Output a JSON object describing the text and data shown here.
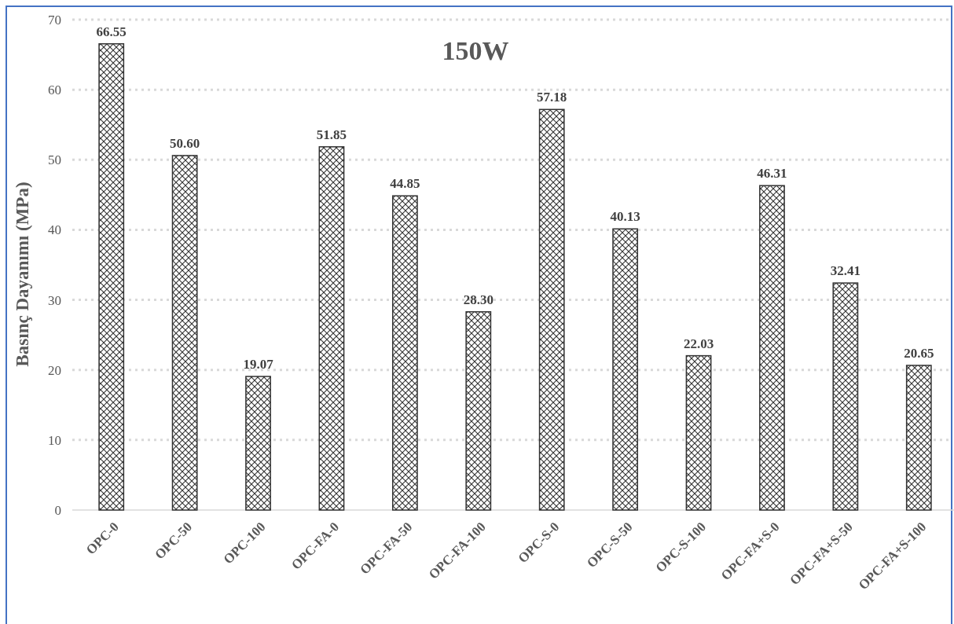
{
  "chart_data": {
    "type": "bar",
    "title": "150W",
    "ylabel": "Basınç Dayanımı (MPa)",
    "categories": [
      "OPC-0",
      "OPC-50",
      "OPC-100",
      "OPC-FA-0",
      "OPC-FA-50",
      "OPC-FA-100",
      "OPC-S-0",
      "OPC-S-50",
      "OPC-S-100",
      "OPC-FA+S-0",
      "OPC-FA+S-50",
      "OPC-FA+S-100"
    ],
    "values": [
      66.55,
      50.6,
      19.07,
      51.85,
      44.85,
      28.3,
      57.18,
      40.13,
      22.03,
      46.31,
      32.41,
      20.65
    ],
    "value_labels": [
      "66.55",
      "50.60",
      "19.07",
      "51.85",
      "44.85",
      "28.30",
      "57.18",
      "40.13",
      "22.03",
      "46.31",
      "32.41",
      "20.65"
    ],
    "color": "#333333",
    "ylim": [
      0,
      70
    ],
    "yticks": [
      0,
      10,
      20,
      30,
      40,
      50,
      60,
      70
    ],
    "grid": "y"
  }
}
